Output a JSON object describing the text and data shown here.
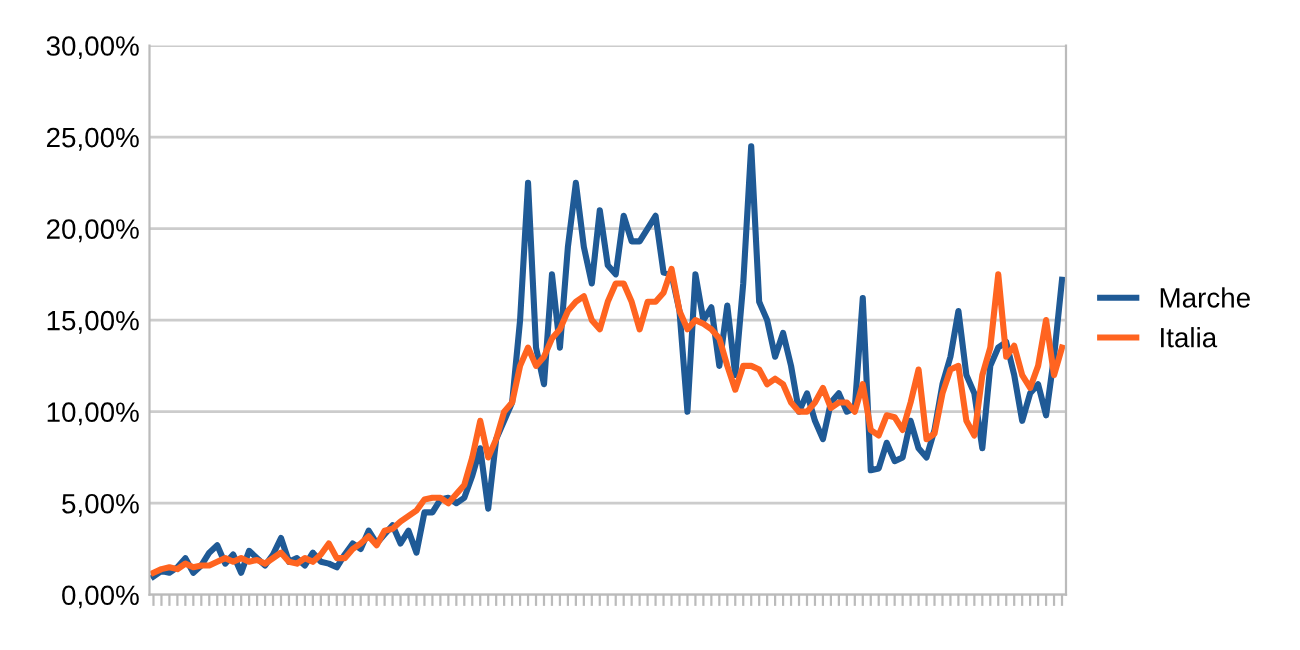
{
  "chart_data": {
    "type": "line",
    "categories": [
      null,
      null,
      null,
      null,
      null,
      null,
      null,
      null,
      null,
      null,
      null,
      null,
      null,
      null,
      null,
      null,
      null,
      null,
      null,
      null,
      null,
      null,
      null,
      null,
      null,
      null,
      null,
      null,
      null,
      null,
      null,
      null,
      null,
      null,
      null,
      null,
      null,
      null,
      null,
      null,
      null,
      null,
      null,
      null,
      null,
      null,
      null,
      null,
      null,
      null,
      null,
      null,
      null,
      null,
      null,
      null,
      null,
      null,
      null,
      null,
      null,
      null,
      null,
      null,
      null,
      null,
      null,
      null,
      null,
      null,
      null,
      null,
      null,
      null,
      null,
      null,
      null,
      null,
      null,
      null,
      null,
      null,
      null,
      null,
      null,
      null,
      null,
      null,
      null,
      null,
      null,
      null,
      null,
      null,
      null,
      null,
      null,
      null,
      null,
      null,
      null,
      null,
      null,
      null,
      null,
      null,
      null,
      null,
      null,
      null,
      null,
      null,
      null,
      null,
      null
    ],
    "series": [
      {
        "name": "Marche",
        "color": "#1f5a96",
        "values": [
          1.0,
          1.3,
          1.2,
          1.5,
          2.0,
          1.2,
          1.6,
          2.3,
          2.7,
          1.7,
          2.2,
          1.2,
          2.4,
          2.0,
          1.6,
          2.2,
          3.1,
          1.8,
          2.0,
          1.6,
          2.3,
          1.8,
          1.7,
          1.5,
          2.2,
          2.8,
          2.5,
          3.5,
          2.8,
          3.3,
          3.8,
          2.8,
          3.5,
          2.3,
          4.5,
          4.5,
          5.2,
          5.3,
          5.0,
          5.3,
          6.5,
          8.0,
          4.7,
          8.5,
          9.5,
          10.5,
          15.0,
          22.5,
          13.5,
          11.5,
          17.5,
          13.5,
          19.0,
          22.5,
          19.0,
          17.0,
          21.0,
          18.0,
          17.5,
          20.7,
          19.3,
          19.3,
          20.0,
          20.7,
          17.6,
          17.5,
          15.5,
          10.0,
          17.5,
          15.0,
          15.7,
          12.5,
          15.8,
          12.0,
          17.0,
          24.5,
          16.0,
          15.0,
          13.0,
          14.3,
          12.5,
          10.0,
          11.0,
          9.5,
          8.5,
          10.5,
          11.0,
          10.0,
          10.2,
          16.2,
          6.8,
          6.9,
          8.3,
          7.3,
          7.5,
          9.5,
          8.0,
          7.5,
          9.0,
          11.5,
          13.0,
          15.5,
          12.0,
          11.0,
          8.0,
          12.5,
          13.5,
          13.8,
          12.0,
          9.5,
          11.0,
          11.5,
          9.8,
          13.0,
          17.2
        ]
      },
      {
        "name": "Italia",
        "color": "#ff6420",
        "values": [
          1.2,
          1.4,
          1.5,
          1.4,
          1.7,
          1.5,
          1.6,
          1.6,
          1.8,
          2.0,
          1.8,
          2.0,
          1.8,
          1.9,
          1.7,
          2.0,
          2.3,
          1.8,
          1.7,
          2.0,
          1.8,
          2.2,
          2.8,
          2.0,
          2.0,
          2.5,
          2.8,
          3.2,
          2.7,
          3.5,
          3.6,
          4.0,
          4.3,
          4.6,
          5.2,
          5.3,
          5.3,
          5.0,
          5.5,
          6.0,
          7.5,
          9.5,
          7.5,
          8.5,
          10.0,
          10.5,
          12.5,
          13.5,
          12.5,
          13.0,
          14.0,
          14.5,
          15.5,
          16.0,
          16.3,
          15.0,
          14.5,
          16.0,
          17.0,
          17.0,
          16.0,
          14.5,
          16.0,
          16.0,
          16.5,
          17.8,
          15.5,
          14.5,
          15.0,
          14.8,
          14.5,
          14.0,
          12.5,
          11.2,
          12.5,
          12.5,
          12.3,
          11.5,
          11.8,
          11.5,
          10.5,
          10.0,
          10.0,
          10.5,
          11.3,
          10.2,
          10.5,
          10.5,
          10.0,
          11.5,
          9.0,
          8.7,
          9.8,
          9.7,
          9.0,
          10.5,
          12.3,
          8.5,
          8.8,
          11.0,
          12.3,
          12.5,
          9.5,
          8.7,
          12.0,
          13.5,
          17.5,
          13.0,
          13.6,
          12.0,
          11.3,
          12.5,
          15.0,
          12.0,
          13.5
        ]
      }
    ],
    "ylim": [
      0,
      30
    ],
    "yticks": [
      {
        "value": 0,
        "label": "0,00%"
      },
      {
        "value": 5,
        "label": "5,00%"
      },
      {
        "value": 10,
        "label": "10,00%"
      },
      {
        "value": 15,
        "label": "15,00%"
      },
      {
        "value": 20,
        "label": "20,00%"
      },
      {
        "value": 25,
        "label": "25,00%"
      },
      {
        "value": 30,
        "label": "30,00%"
      }
    ],
    "grid": "y",
    "legend": "right",
    "tick_labels": "y",
    "marker": "none",
    "line_style": "solid"
  }
}
